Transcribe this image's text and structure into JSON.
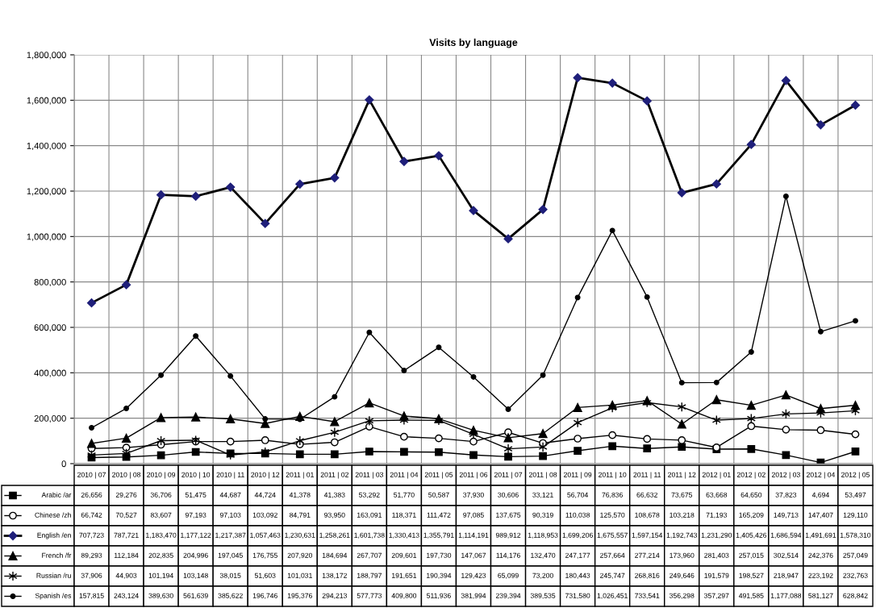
{
  "chart_data": {
    "type": "line",
    "title": "Visits by language",
    "categories": [
      "2010 | 07",
      "2010 | 08",
      "2010 | 09",
      "2010 | 10",
      "2010 | 11",
      "2010 | 12",
      "2011 | 01",
      "2011 | 02",
      "2011 | 03",
      "2011 | 04",
      "2011 | 05",
      "2011 | 06",
      "2011 | 07",
      "2011 | 08",
      "2011 | 09",
      "2011 | 10",
      "2011 | 11",
      "2011 | 12",
      "2012 | 01",
      "2012 | 02",
      "2012 | 03",
      "2012 | 04",
      "2012 | 05"
    ],
    "series": [
      {
        "name": "Arabic /ar",
        "color": "#000000",
        "marker": "square",
        "values": [
          26656,
          29276,
          36706,
          51475,
          44687,
          44724,
          41378,
          41383,
          53292,
          51770,
          50587,
          37930,
          30606,
          33121,
          56704,
          76836,
          66632,
          73675,
          63668,
          64650,
          37823,
          4694,
          53497
        ],
        "value_labels": [
          "26,656",
          "29,276",
          "36,706",
          "51,475",
          "44,687",
          "44,724",
          "41,378",
          "41,383",
          "53,292",
          "51,770",
          "50,587",
          "37,930",
          "30,606",
          "33,121",
          "56,704",
          "76,836",
          "66,632",
          "73,675",
          "63,668",
          "64,650",
          "37,823",
          "4,694",
          "53,497"
        ]
      },
      {
        "name": "Chinese /zh",
        "color": "#000000",
        "marker": "circle",
        "values": [
          66742,
          70527,
          83607,
          97193,
          97103,
          103092,
          84791,
          93950,
          163091,
          118371,
          111472,
          97085,
          137675,
          90319,
          110038,
          125570,
          108678,
          103218,
          71193,
          165209,
          149713,
          147407,
          129110
        ],
        "value_labels": [
          "66,742",
          "70,527",
          "83,607",
          "97,193",
          "97,103",
          "103,092",
          "84,791",
          "93,950",
          "163,091",
          "118,371",
          "111,472",
          "97,085",
          "137,675",
          "90,319",
          "110,038",
          "125,570",
          "108,678",
          "103,218",
          "71,193",
          "165,209",
          "149,713",
          "147,407",
          "129,110"
        ]
      },
      {
        "name": "English /en",
        "color": "#000000",
        "marker": "diamond",
        "values": [
          707723,
          787721,
          1183470,
          1177122,
          1217387,
          1057463,
          1230631,
          1258261,
          1601738,
          1330413,
          1355791,
          1114191,
          989912,
          1118953,
          1699206,
          1675557,
          1597154,
          1192743,
          1231290,
          1405426,
          1686594,
          1491691,
          1578310
        ],
        "value_labels": [
          "707,723",
          "787,721",
          "1,183,470",
          "1,177,122",
          "1,217,387",
          "1,057,463",
          "1,230,631",
          "1,258,261",
          "1,601,738",
          "1,330,413",
          "1,355,791",
          "1,114,191",
          "989,912",
          "1,118,953",
          "1,699,206",
          "1,675,557",
          "1,597,154",
          "1,192,743",
          "1,231,290",
          "1,405,426",
          "1,686,594",
          "1,491,691",
          "1,578,310"
        ]
      },
      {
        "name": "French /fr",
        "color": "#000000",
        "marker": "triangle",
        "values": [
          89293,
          112184,
          202835,
          204996,
          197045,
          176755,
          207920,
          184694,
          267707,
          209601,
          197730,
          147067,
          114176,
          132470,
          247177,
          257664,
          277214,
          173960,
          281403,
          257015,
          302514,
          242376,
          257049
        ],
        "value_labels": [
          "89,293",
          "112,184",
          "202,835",
          "204,996",
          "197,045",
          "176,755",
          "207,920",
          "184,694",
          "267,707",
          "209,601",
          "197,730",
          "147,067",
          "114,176",
          "132,470",
          "247,177",
          "257,664",
          "277,214",
          "173,960",
          "281,403",
          "257,015",
          "302,514",
          "242,376",
          "257,049"
        ]
      },
      {
        "name": "Russian /ru",
        "color": "#000000",
        "marker": "cross",
        "values": [
          37906,
          44903,
          101194,
          103148,
          38015,
          51603,
          101031,
          138172,
          188797,
          191651,
          190394,
          129423,
          65099,
          73200,
          180443,
          245747,
          268816,
          249646,
          191579,
          198527,
          218947,
          223192,
          232763
        ],
        "value_labels": [
          "37,906",
          "44,903",
          "101,194",
          "103,148",
          "38,015",
          "51,603",
          "101,031",
          "138,172",
          "188,797",
          "191,651",
          "190,394",
          "129,423",
          "65,099",
          "73,200",
          "180,443",
          "245,747",
          "268,816",
          "249,646",
          "191,579",
          "198,527",
          "218,947",
          "223,192",
          "232,763"
        ]
      },
      {
        "name": "Spanish /es",
        "color": "#000000",
        "marker": "circle",
        "values": [
          157815,
          243124,
          389630,
          561639,
          385622,
          196746,
          195376,
          294213,
          577773,
          409800,
          511936,
          381994,
          239394,
          389535,
          731580,
          1026451,
          733541,
          356298,
          357297,
          491585,
          1177088,
          581127,
          628842
        ],
        "value_labels": [
          "157,815",
          "243,124",
          "389,630",
          "561,639",
          "385,622",
          "196,746",
          "195,376",
          "294,213",
          "577,773",
          "409,800",
          "511,936",
          "381,994",
          "239,394",
          "389,535",
          "731,580",
          "1,026,451",
          "733,541",
          "356,298",
          "357,297",
          "491,585",
          "1,177,088",
          "581,127",
          "628,842"
        ]
      }
    ],
    "ylim": [
      0,
      1800000
    ],
    "yticks": [
      {
        "value": 0,
        "label": "0"
      },
      {
        "value": 200000,
        "label": "200,000"
      },
      {
        "value": 400000,
        "label": "400,000"
      },
      {
        "value": 600000,
        "label": "600,000"
      },
      {
        "value": 800000,
        "label": "800,000"
      },
      {
        "value": 1000000,
        "label": "1,000,000"
      },
      {
        "value": 1200000,
        "label": "1,200,000"
      },
      {
        "value": 1400000,
        "label": "1,400,000"
      },
      {
        "value": 1600000,
        "label": "1,600,000"
      },
      {
        "value": 1800000,
        "label": "1,800,000"
      }
    ],
    "grid": true,
    "legend": "bottom",
    "tick_labels": "y",
    "line_style": "solid"
  }
}
